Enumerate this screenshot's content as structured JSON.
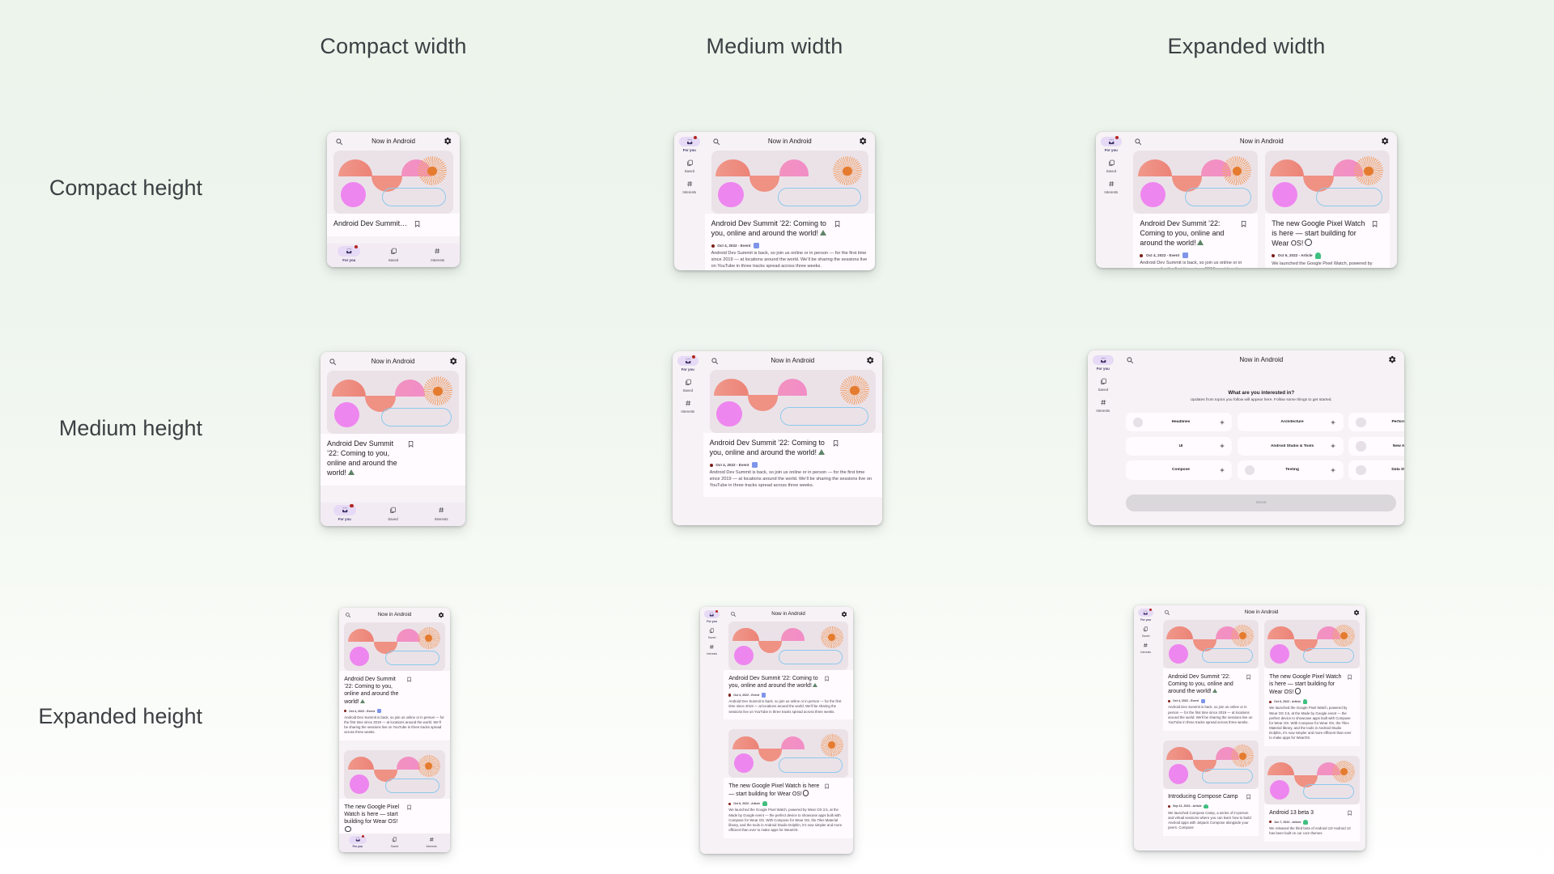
{
  "page": {
    "column_headers": [
      "Compact width",
      "Medium width",
      "Expanded width"
    ],
    "row_headers": [
      "Compact height",
      "Medium height",
      "Expanded height"
    ],
    "colors": {
      "background_top": "#ecf4ec",
      "background_bottom": "#ffffff",
      "header_text": "#3c4043",
      "accent_selected_pill": "#e6daf6",
      "notification_dot": "#b3261e",
      "hero_background": "#ebe2e8"
    }
  },
  "app": {
    "title": "Now in Android",
    "topbar_icons": [
      "search-icon",
      "settings-icon"
    ],
    "nav_items": [
      {
        "label": "For you",
        "icon": "for-you-icon",
        "selected": true
      },
      {
        "label": "Saved",
        "icon": "saved-icon",
        "selected": false
      },
      {
        "label": "Interests",
        "icon": "interests-icon",
        "selected": false
      }
    ],
    "cards": {
      "dev_summit": {
        "title": "Android Dev Summit ’22: Coming to you, online and around the world!",
        "title_icon": "mountain-emoji",
        "meta": "Oct 4, 2022 - Event",
        "meta_icon": "calendar-emoji",
        "body": "Android Dev Summit is back, so join us online or in person — for the first time since 2019 — at locations around the world. We’ll be sharing the sessions live on YouTube in three tracks spread across three weeks."
      },
      "pixel_watch": {
        "title": "The new Google Pixel Watch is here — start building for Wear OS!",
        "title_icon": "watch-emoji",
        "meta": "Oct 6, 2022 - Article",
        "meta_icon": "android-emoji",
        "body": "We launched the Google Pixel Watch, powered by Wear OS 3.5, at the Made by Google event — the perfect device to showcase apps built with Compose for Wear OS. With Compose for Wear OS, the Tiles Material library, and the tools in Android Studio Dolphin, it’s now simpler and more efficient than ever to make apps for WearOS."
      },
      "compose_camp": {
        "title": "Introducing Compose Camp",
        "title_icon": null,
        "meta": "Sep 12, 2022 - Article",
        "meta_icon": "android-emoji",
        "body": "We launched Compose Camp, a series of in-person and virtual sessions where you can learn how to build Android apps with Jetpack Compose alongside your peers. Compose"
      },
      "android13": {
        "title": "Android 13 beta 3",
        "title_icon": null,
        "meta": "Jun 7, 2022 - Article",
        "meta_icon": "android-emoji",
        "body": "We released the third beta of Android 13! Android 13 has been built on our core themes"
      }
    },
    "interests": {
      "heading": "What are you interested in?",
      "subtitle": "Updates from topics you follow will appear here. Follow some things to get started.",
      "chips": [
        {
          "label": "Headlines",
          "avatar": true
        },
        {
          "label": "Architecture",
          "avatar": false
        },
        {
          "label": "Performance",
          "avatar": true
        },
        {
          "label": "UI",
          "avatar": false
        },
        {
          "label": "Android Studio & Tools",
          "avatar": false
        },
        {
          "label": "New APIs &",
          "avatar": true
        },
        {
          "label": "Compose",
          "avatar": false
        },
        {
          "label": "Testing",
          "avatar": true
        },
        {
          "label": "Data Storage",
          "avatar": true
        }
      ],
      "done_label": "Done"
    }
  },
  "apps": [
    {
      "id": "compact-compact",
      "width_class": "Compact",
      "height_class": "Compact",
      "nav": "bottom",
      "screen": "feed",
      "columns": [
        [
          "dev_summit"
        ]
      ],
      "badge": true,
      "title_only": true,
      "clamp_title": 1
    },
    {
      "id": "medium-compact",
      "width_class": "Medium",
      "height_class": "Compact",
      "nav": "rail",
      "screen": "feed",
      "columns": [
        [
          "dev_summit"
        ]
      ],
      "badge": true
    },
    {
      "id": "expanded-compact",
      "width_class": "Expanded",
      "height_class": "Compact",
      "nav": "rail",
      "screen": "feed",
      "columns": [
        [
          "dev_summit"
        ],
        [
          "pixel_watch"
        ]
      ],
      "badge": true
    },
    {
      "id": "compact-medium",
      "width_class": "Compact",
      "height_class": "Medium",
      "nav": "bottom",
      "screen": "feed",
      "columns": [
        [
          "dev_summit"
        ]
      ],
      "badge": true,
      "title_only": true
    },
    {
      "id": "medium-medium",
      "width_class": "Medium",
      "height_class": "Medium",
      "nav": "rail",
      "screen": "feed",
      "columns": [
        [
          "dev_summit"
        ]
      ],
      "badge": true
    },
    {
      "id": "expanded-medium",
      "width_class": "Expanded",
      "height_class": "Medium",
      "nav": "rail",
      "screen": "interests",
      "badge": false
    },
    {
      "id": "compact-expanded",
      "width_class": "Compact",
      "height_class": "Expanded",
      "nav": "bottom",
      "screen": "feed",
      "columns": [
        [
          "dev_summit",
          "pixel_watch"
        ]
      ],
      "badge": true
    },
    {
      "id": "medium-expanded",
      "width_class": "Medium",
      "height_class": "Expanded",
      "nav": "rail",
      "screen": "feed",
      "columns": [
        [
          "dev_summit",
          "pixel_watch"
        ]
      ],
      "badge": true
    },
    {
      "id": "expanded-expanded",
      "width_class": "Expanded",
      "height_class": "Expanded",
      "nav": "rail",
      "screen": "feed",
      "columns": [
        [
          "dev_summit",
          "compose_camp"
        ],
        [
          "pixel_watch",
          "android13"
        ]
      ],
      "badge": true
    }
  ]
}
